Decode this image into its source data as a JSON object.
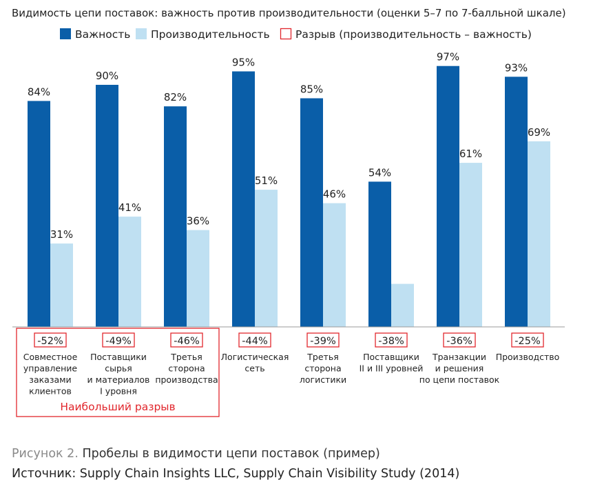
{
  "chart_data": {
    "type": "bar",
    "title": "Видимость цепи поставок: важность против производительности (оценки 5–7 по 7-балльной шкале)",
    "legend": [
      {
        "key": "importance",
        "label": "Важность",
        "color": "#0a5ea8",
        "style": "filled"
      },
      {
        "key": "performance",
        "label": "Производительность",
        "color": "#bfe0f2",
        "style": "filled"
      },
      {
        "key": "gap",
        "label": "Разрыв (производительность – важность)",
        "color": "#e1262c",
        "style": "outline"
      }
    ],
    "categories": [
      [
        "Совместное",
        "управление",
        "заказами",
        "клиентов"
      ],
      [
        "Поставщики",
        "сырья",
        "и материалов",
        "I уровня"
      ],
      [
        "Третья",
        "сторона",
        "производства"
      ],
      [
        "Логистическая",
        "сеть"
      ],
      [
        "Третья",
        "сторона",
        "логистики"
      ],
      [
        "Поставщики",
        "II и III уровней"
      ],
      [
        "Транзакции",
        "и решения",
        "по цепи поставок"
      ],
      [
        "Производство"
      ]
    ],
    "series": [
      {
        "name": "Важность",
        "values": [
          84,
          90,
          82,
          95,
          85,
          54,
          97,
          93
        ],
        "color": "#0a5ea8"
      },
      {
        "name": "Производительность",
        "values": [
          31,
          41,
          36,
          51,
          46,
          16,
          61,
          69
        ],
        "color": "#bfe0f2"
      }
    ],
    "value_labels": {
      "importance": [
        "84%",
        "90%",
        "82%",
        "95%",
        "85%",
        "54%",
        "97%",
        "93%"
      ],
      "performance": [
        "31%",
        "41%",
        "36%",
        "51%",
        "46%",
        "",
        "61%",
        "69%"
      ]
    },
    "gaps": [
      "-52%",
      "-49%",
      "-46%",
      "-44%",
      "-39%",
      "-38%",
      "-36%",
      "-25%"
    ],
    "highlight": {
      "label": "Наибольший разрыв",
      "category_count": 3,
      "color": "#e1262c"
    },
    "ylim": [
      0,
      100
    ],
    "grid": false,
    "legend_position": "top"
  },
  "caption": {
    "figure_prefix": "Рисунок 2.",
    "figure_title": " Пробелы в видимости цепи поставок (пример)",
    "source": "Источник: Supply Chain Insights LLC, Supply Chain Visibility Study (2014)"
  }
}
